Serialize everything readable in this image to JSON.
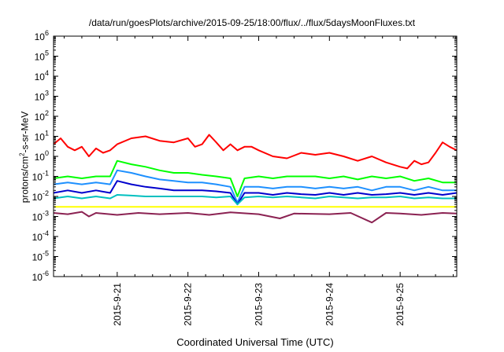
{
  "chart_data": {
    "type": "line",
    "title": "/data/run/goesPlots/archive/2015-09-25/18:00/flux/../flux/5daysMoonFluxes.txt",
    "xlabel": "Coordinated Universal Time (UTC)",
    "ylabel_main": "protons/cm",
    "ylabel_sup": "2",
    "ylabel_rest": "-s-sr-MeV",
    "xlim": [
      20.1,
      25.8
    ],
    "ylim": [
      -6,
      6
    ],
    "yscale": "log",
    "x_ticks": [
      {
        "x": 21,
        "label": "2015-9-21"
      },
      {
        "x": 22,
        "label": "2015-9-22"
      },
      {
        "x": 23,
        "label": "2015-9-23"
      },
      {
        "x": 24,
        "label": "2015-9-24"
      },
      {
        "x": 25,
        "label": "2015-9-25"
      }
    ],
    "y_ticks": [
      {
        "exp": -6,
        "label": "-6"
      },
      {
        "exp": -5,
        "label": "-5"
      },
      {
        "exp": -4,
        "label": "-4"
      },
      {
        "exp": -3,
        "label": "-3"
      },
      {
        "exp": -2,
        "label": "-2"
      },
      {
        "exp": -1,
        "label": "-1"
      },
      {
        "exp": 0,
        "label": "0"
      },
      {
        "exp": 1,
        "label": "1"
      },
      {
        "exp": 2,
        "label": "2"
      },
      {
        "exp": 3,
        "label": "3"
      },
      {
        "exp": 4,
        "label": "4"
      },
      {
        "exp": 5,
        "label": "5"
      },
      {
        "exp": 6,
        "label": "6"
      }
    ],
    "y_tick_base": "10",
    "grid": false,
    "series": [
      {
        "color": "#ff0000",
        "points": [
          [
            20.1,
            4
          ],
          [
            20.2,
            8
          ],
          [
            20.3,
            3
          ],
          [
            20.4,
            2
          ],
          [
            20.5,
            3
          ],
          [
            20.6,
            1
          ],
          [
            20.7,
            2.5
          ],
          [
            20.8,
            1.5
          ],
          [
            20.9,
            2
          ],
          [
            21.0,
            4
          ],
          [
            21.2,
            8
          ],
          [
            21.4,
            10
          ],
          [
            21.6,
            6
          ],
          [
            21.8,
            5
          ],
          [
            22.0,
            8
          ],
          [
            22.1,
            3
          ],
          [
            22.2,
            4
          ],
          [
            22.3,
            12
          ],
          [
            22.4,
            5
          ],
          [
            22.5,
            2
          ],
          [
            22.6,
            4
          ],
          [
            22.7,
            2
          ],
          [
            22.8,
            3
          ],
          [
            22.9,
            3
          ],
          [
            23.0,
            2
          ],
          [
            23.2,
            1
          ],
          [
            23.4,
            0.8
          ],
          [
            23.6,
            1.5
          ],
          [
            23.8,
            1.2
          ],
          [
            24.0,
            1.5
          ],
          [
            24.2,
            1
          ],
          [
            24.4,
            0.6
          ],
          [
            24.6,
            1
          ],
          [
            24.8,
            0.5
          ],
          [
            25.0,
            0.3
          ],
          [
            25.1,
            0.25
          ],
          [
            25.2,
            0.6
          ],
          [
            25.3,
            0.4
          ],
          [
            25.4,
            0.5
          ],
          [
            25.5,
            1.5
          ],
          [
            25.6,
            5
          ],
          [
            25.7,
            3
          ],
          [
            25.8,
            2
          ]
        ]
      },
      {
        "color": "#00ff00",
        "points": [
          [
            20.1,
            0.08
          ],
          [
            20.3,
            0.1
          ],
          [
            20.5,
            0.08
          ],
          [
            20.7,
            0.1
          ],
          [
            20.9,
            0.1
          ],
          [
            21.0,
            0.6
          ],
          [
            21.2,
            0.4
          ],
          [
            21.4,
            0.3
          ],
          [
            21.6,
            0.2
          ],
          [
            21.8,
            0.15
          ],
          [
            22.0,
            0.15
          ],
          [
            22.2,
            0.12
          ],
          [
            22.4,
            0.1
          ],
          [
            22.6,
            0.08
          ],
          [
            22.7,
            0.01
          ],
          [
            22.8,
            0.08
          ],
          [
            23.0,
            0.1
          ],
          [
            23.2,
            0.08
          ],
          [
            23.4,
            0.1
          ],
          [
            23.6,
            0.1
          ],
          [
            23.8,
            0.1
          ],
          [
            24.0,
            0.08
          ],
          [
            24.2,
            0.1
          ],
          [
            24.4,
            0.07
          ],
          [
            24.6,
            0.1
          ],
          [
            24.8,
            0.08
          ],
          [
            25.0,
            0.1
          ],
          [
            25.2,
            0.06
          ],
          [
            25.4,
            0.08
          ],
          [
            25.6,
            0.05
          ],
          [
            25.8,
            0.05
          ]
        ]
      },
      {
        "color": "#1e90ff",
        "points": [
          [
            20.1,
            0.04
          ],
          [
            20.3,
            0.05
          ],
          [
            20.5,
            0.04
          ],
          [
            20.7,
            0.05
          ],
          [
            20.9,
            0.04
          ],
          [
            21.0,
            0.2
          ],
          [
            21.2,
            0.15
          ],
          [
            21.4,
            0.1
          ],
          [
            21.6,
            0.07
          ],
          [
            21.8,
            0.06
          ],
          [
            22.0,
            0.05
          ],
          [
            22.2,
            0.05
          ],
          [
            22.4,
            0.04
          ],
          [
            22.6,
            0.03
          ],
          [
            22.7,
            0.005
          ],
          [
            22.8,
            0.03
          ],
          [
            23.0,
            0.03
          ],
          [
            23.2,
            0.025
          ],
          [
            23.4,
            0.03
          ],
          [
            23.6,
            0.03
          ],
          [
            23.8,
            0.025
          ],
          [
            24.0,
            0.03
          ],
          [
            24.2,
            0.025
          ],
          [
            24.4,
            0.03
          ],
          [
            24.6,
            0.02
          ],
          [
            24.8,
            0.03
          ],
          [
            25.0,
            0.03
          ],
          [
            25.2,
            0.02
          ],
          [
            25.4,
            0.03
          ],
          [
            25.6,
            0.02
          ],
          [
            25.8,
            0.02
          ]
        ]
      },
      {
        "color": "#0000cd",
        "points": [
          [
            20.1,
            0.015
          ],
          [
            20.3,
            0.02
          ],
          [
            20.5,
            0.015
          ],
          [
            20.7,
            0.02
          ],
          [
            20.9,
            0.015
          ],
          [
            21.0,
            0.06
          ],
          [
            21.2,
            0.04
          ],
          [
            21.4,
            0.03
          ],
          [
            21.6,
            0.025
          ],
          [
            21.8,
            0.02
          ],
          [
            22.0,
            0.02
          ],
          [
            22.2,
            0.02
          ],
          [
            22.4,
            0.018
          ],
          [
            22.6,
            0.015
          ],
          [
            22.7,
            0.004
          ],
          [
            22.8,
            0.015
          ],
          [
            23.0,
            0.015
          ],
          [
            23.2,
            0.012
          ],
          [
            23.4,
            0.015
          ],
          [
            23.6,
            0.013
          ],
          [
            23.8,
            0.012
          ],
          [
            24.0,
            0.015
          ],
          [
            24.2,
            0.012
          ],
          [
            24.4,
            0.015
          ],
          [
            24.6,
            0.012
          ],
          [
            24.8,
            0.013
          ],
          [
            25.0,
            0.015
          ],
          [
            25.2,
            0.012
          ],
          [
            25.4,
            0.015
          ],
          [
            25.6,
            0.012
          ],
          [
            25.8,
            0.015
          ]
        ]
      },
      {
        "color": "#00c0c0",
        "points": [
          [
            20.1,
            0.008
          ],
          [
            20.3,
            0.01
          ],
          [
            20.5,
            0.008
          ],
          [
            20.7,
            0.01
          ],
          [
            20.9,
            0.008
          ],
          [
            21.0,
            0.012
          ],
          [
            21.2,
            0.011
          ],
          [
            21.4,
            0.01
          ],
          [
            21.6,
            0.01
          ],
          [
            21.8,
            0.01
          ],
          [
            22.0,
            0.01
          ],
          [
            22.2,
            0.01
          ],
          [
            22.4,
            0.009
          ],
          [
            22.6,
            0.01
          ],
          [
            22.7,
            0.004
          ],
          [
            22.8,
            0.009
          ],
          [
            23.0,
            0.01
          ],
          [
            23.2,
            0.009
          ],
          [
            23.4,
            0.01
          ],
          [
            23.6,
            0.009
          ],
          [
            23.8,
            0.008
          ],
          [
            24.0,
            0.01
          ],
          [
            24.2,
            0.009
          ],
          [
            24.4,
            0.008
          ],
          [
            24.6,
            0.009
          ],
          [
            24.8,
            0.009
          ],
          [
            25.0,
            0.01
          ],
          [
            25.2,
            0.008
          ],
          [
            25.4,
            0.009
          ],
          [
            25.6,
            0.008
          ],
          [
            25.8,
            0.008
          ]
        ]
      },
      {
        "color": "#ffff00",
        "points": [
          [
            20.1,
            0.003
          ],
          [
            20.5,
            0.003
          ],
          [
            21.0,
            0.003
          ],
          [
            21.5,
            0.003
          ],
          [
            22.0,
            0.003
          ],
          [
            22.5,
            0.003
          ],
          [
            23.0,
            0.003
          ],
          [
            23.5,
            0.003
          ],
          [
            24.0,
            0.003
          ],
          [
            24.5,
            0.003
          ],
          [
            25.0,
            0.003
          ],
          [
            25.5,
            0.003
          ],
          [
            25.8,
            0.003
          ]
        ]
      },
      {
        "color": "#8b2252",
        "points": [
          [
            20.1,
            0.0015
          ],
          [
            20.3,
            0.0013
          ],
          [
            20.5,
            0.0017
          ],
          [
            20.6,
            0.001
          ],
          [
            20.7,
            0.0015
          ],
          [
            21.0,
            0.0012
          ],
          [
            21.3,
            0.0015
          ],
          [
            21.6,
            0.0013
          ],
          [
            22.0,
            0.0015
          ],
          [
            22.3,
            0.0012
          ],
          [
            22.6,
            0.0016
          ],
          [
            23.0,
            0.0013
          ],
          [
            23.3,
            0.0008
          ],
          [
            23.5,
            0.0014
          ],
          [
            24.0,
            0.0013
          ],
          [
            24.3,
            0.0015
          ],
          [
            24.6,
            0.0005
          ],
          [
            24.8,
            0.0015
          ],
          [
            25.0,
            0.0014
          ],
          [
            25.3,
            0.0012
          ],
          [
            25.6,
            0.0015
          ],
          [
            25.8,
            0.0014
          ]
        ]
      }
    ]
  }
}
